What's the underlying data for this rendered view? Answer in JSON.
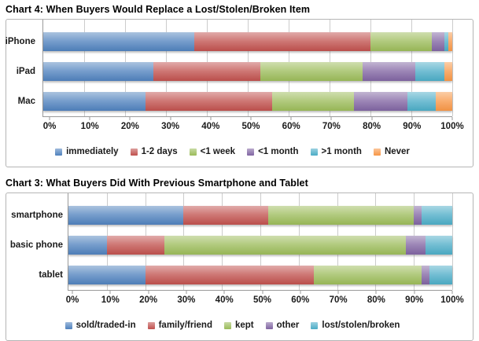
{
  "chart_data": [
    {
      "type": "bar",
      "stacked": true,
      "orientation": "horizontal",
      "title": "Chart 4: When Buyers Would Replace a Lost/Stolen/Broken Item",
      "categories": [
        "iPhone",
        "iPad",
        "Mac"
      ],
      "series": [
        {
          "name": "immediately",
          "color": "#4F81BD",
          "values": [
            37,
            27,
            25
          ]
        },
        {
          "name": "1-2 days",
          "color": "#C0504D",
          "values": [
            43,
            26,
            31
          ]
        },
        {
          "name": "<1 week",
          "color": "#9BBB59",
          "values": [
            15,
            25,
            20
          ]
        },
        {
          "name": "<1 month",
          "color": "#8064A2",
          "values": [
            3,
            13,
            13
          ]
        },
        {
          "name": ">1 month",
          "color": "#4BACC6",
          "values": [
            1,
            7,
            7
          ]
        },
        {
          "name": "Never",
          "color": "#F79646",
          "values": [
            1,
            2,
            4
          ]
        }
      ],
      "units": "%",
      "xlabel": "",
      "ylabel": "",
      "xlim": [
        0,
        100
      ],
      "xticks": [
        "0%",
        "10%",
        "20%",
        "30%",
        "40%",
        "50%",
        "60%",
        "70%",
        "80%",
        "90%",
        "100%"
      ],
      "grid": true,
      "legend_position": "bottom"
    },
    {
      "type": "bar",
      "stacked": true,
      "orientation": "horizontal",
      "title": "Chart 3: What Buyers Did With Previous Smartphone and Tablet",
      "categories": [
        "smartphone",
        "basic phone",
        "tablet"
      ],
      "series": [
        {
          "name": "sold/traded-in",
          "color": "#4F81BD",
          "values": [
            30,
            10,
            20
          ]
        },
        {
          "name": "family/friend",
          "color": "#C0504D",
          "values": [
            22,
            15,
            44
          ]
        },
        {
          "name": "kept",
          "color": "#9BBB59",
          "values": [
            38,
            63,
            28
          ]
        },
        {
          "name": "other",
          "color": "#8064A2",
          "values": [
            2,
            5,
            2
          ]
        },
        {
          "name": "lost/stolen/broken",
          "color": "#4BACC6",
          "values": [
            8,
            7,
            6
          ]
        }
      ],
      "units": "%",
      "xlabel": "",
      "ylabel": "",
      "xlim": [
        0,
        100
      ],
      "xticks": [
        "0%",
        "10%",
        "20%",
        "30%",
        "40%",
        "50%",
        "60%",
        "70%",
        "80%",
        "90%",
        "100%"
      ],
      "grid": true,
      "legend_position": "bottom"
    }
  ],
  "style": {
    "gridline_color": "#cccccc",
    "axis_color": "#9a9a9a",
    "text_color": "#1a1a1a",
    "box_border_color": "#b5b5b5"
  }
}
